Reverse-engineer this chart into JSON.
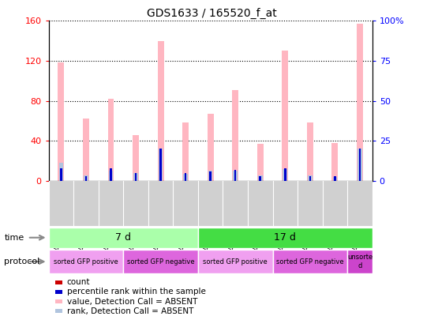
{
  "title": "GDS1633 / 165520_f_at",
  "samples": [
    "GSM43190",
    "GSM43204",
    "GSM43211",
    "GSM43187",
    "GSM43201",
    "GSM43208",
    "GSM43197",
    "GSM43218",
    "GSM43227",
    "GSM43194",
    "GSM43215",
    "GSM43224",
    "GSM43221"
  ],
  "value_absent": [
    118,
    62,
    82,
    46,
    140,
    58,
    67,
    91,
    37,
    130,
    58,
    38,
    157
  ],
  "rank_absent": [
    18,
    5,
    10,
    8,
    32,
    7,
    10,
    10,
    5,
    12,
    5,
    4,
    32
  ],
  "count": [
    3,
    1,
    3,
    2,
    2,
    2,
    2,
    2,
    1,
    3,
    1,
    1,
    2
  ],
  "percentile": [
    8,
    3,
    8,
    5,
    20,
    5,
    6,
    7,
    3,
    8,
    3,
    3,
    20
  ],
  "ylim_left": [
    0,
    160
  ],
  "ylim_right": [
    0,
    100
  ],
  "yticks_left": [
    0,
    40,
    80,
    120,
    160
  ],
  "yticks_right": [
    0,
    25,
    50,
    75,
    100
  ],
  "ytick_labels_right": [
    "0",
    "25",
    "50",
    "75",
    "100%"
  ],
  "time_groups": [
    {
      "label": "7 d",
      "start": 0,
      "end": 6,
      "color": "#aaffaa"
    },
    {
      "label": "17 d",
      "start": 6,
      "end": 13,
      "color": "#44dd44"
    }
  ],
  "protocol_groups": [
    {
      "label": "sorted GFP positive",
      "start": 0,
      "end": 3,
      "color": "#f0a0f0"
    },
    {
      "label": "sorted GFP negative",
      "start": 3,
      "end": 6,
      "color": "#dd66dd"
    },
    {
      "label": "sorted GFP positive",
      "start": 6,
      "end": 9,
      "color": "#f0a0f0"
    },
    {
      "label": "sorted GFP negative",
      "start": 9,
      "end": 12,
      "color": "#dd66dd"
    },
    {
      "label": "unsorte\nd",
      "start": 12,
      "end": 13,
      "color": "#cc44cc"
    }
  ],
  "color_value_absent": "#ffb6c1",
  "color_rank_absent": "#b0c4de",
  "color_count": "#cc0000",
  "color_percentile": "#0000cc",
  "background_color": "#ffffff",
  "tick_label_bg": "#d0d0d0",
  "left_axis_color": "red",
  "right_axis_color": "blue"
}
